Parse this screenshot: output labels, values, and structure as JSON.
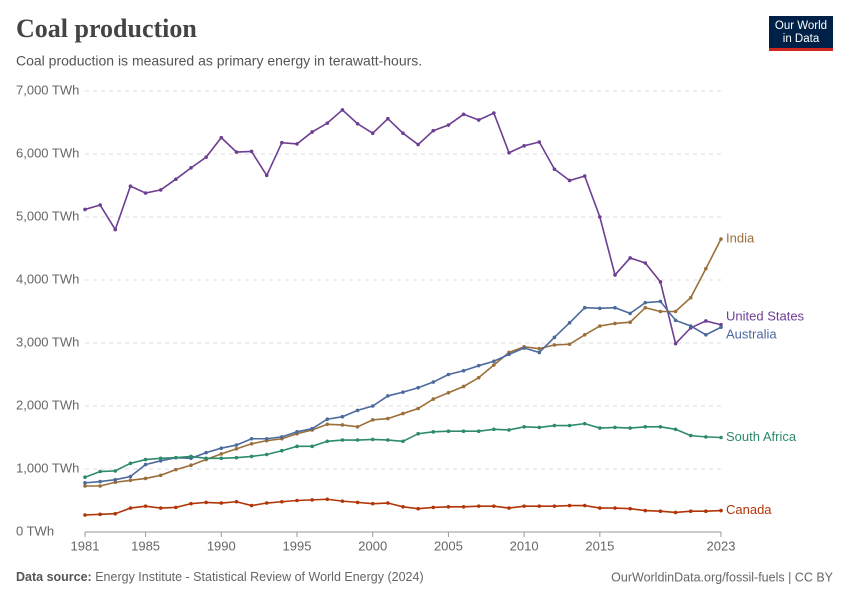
{
  "chart_data": {
    "type": "line",
    "title": "Coal production",
    "subtitle": "Coal production is measured as primary energy in terawatt-hours.",
    "logo": [
      "Our World",
      "in Data"
    ],
    "source_label": "Data source:",
    "source": "Energy Institute - Statistical Review of World Energy (2024)",
    "url": "OurWorldinData.org/fossil-fuels | CC BY",
    "x": [
      1981,
      1982,
      1983,
      1984,
      1985,
      1986,
      1987,
      1988,
      1989,
      1990,
      1991,
      1992,
      1993,
      1994,
      1995,
      1996,
      1997,
      1998,
      1999,
      2000,
      2001,
      2002,
      2003,
      2004,
      2005,
      2006,
      2007,
      2008,
      2009,
      2010,
      2011,
      2012,
      2013,
      2014,
      2015,
      2016,
      2017,
      2018,
      2019,
      2020,
      2021,
      2022,
      2023
    ],
    "xlim": [
      1981,
      2023
    ],
    "xticks": [
      1981,
      1985,
      1990,
      1995,
      2000,
      2005,
      2010,
      2015,
      2023
    ],
    "ylim": [
      0,
      7000
    ],
    "yticks": [
      {
        "value": 0,
        "label": "0 TWh"
      },
      {
        "value": 1000,
        "label": "1,000 TWh"
      },
      {
        "value": 2000,
        "label": "2,000 TWh"
      },
      {
        "value": 3000,
        "label": "3,000 TWh"
      },
      {
        "value": 4000,
        "label": "4,000 TWh"
      },
      {
        "value": 5000,
        "label": "5,000 TWh"
      },
      {
        "value": 6000,
        "label": "6,000 TWh"
      },
      {
        "value": 7000,
        "label": "7,000 TWh"
      }
    ],
    "grid": true,
    "series": [
      {
        "name": "United States",
        "color": "#6d3e91",
        "values": [
          5120,
          5190,
          4800,
          5490,
          5380,
          5430,
          5600,
          5780,
          5950,
          6260,
          6030,
          6040,
          5660,
          6180,
          6160,
          6350,
          6490,
          6700,
          6480,
          6330,
          6560,
          6330,
          6150,
          6370,
          6460,
          6630,
          6540,
          6650,
          6020,
          6130,
          6190,
          5760,
          5580,
          5650,
          5000,
          4080,
          4350,
          4270,
          3970,
          2990,
          3240,
          3350,
          3290
        ]
      },
      {
        "name": "India",
        "color": "#9a6f3a",
        "values": [
          730,
          730,
          790,
          820,
          850,
          900,
          990,
          1060,
          1150,
          1240,
          1320,
          1400,
          1450,
          1480,
          1560,
          1620,
          1710,
          1700,
          1670,
          1780,
          1800,
          1880,
          1960,
          2110,
          2210,
          2310,
          2450,
          2650,
          2850,
          2940,
          2910,
          2970,
          2980,
          3130,
          3270,
          3310,
          3330,
          3560,
          3500,
          3500,
          3720,
          4180,
          4650
        ]
      },
      {
        "name": "Australia",
        "color": "#4c6a9c",
        "values": [
          780,
          800,
          830,
          880,
          1070,
          1130,
          1180,
          1170,
          1260,
          1330,
          1380,
          1480,
          1480,
          1510,
          1590,
          1640,
          1790,
          1830,
          1930,
          2000,
          2160,
          2220,
          2290,
          2380,
          2500,
          2560,
          2640,
          2710,
          2820,
          2920,
          2850,
          3090,
          3320,
          3560,
          3550,
          3560,
          3470,
          3640,
          3660,
          3360,
          3270,
          3130,
          3250
        ]
      },
      {
        "name": "South Africa",
        "color": "#2d8a6b",
        "values": [
          870,
          960,
          970,
          1090,
          1150,
          1170,
          1180,
          1200,
          1170,
          1170,
          1180,
          1200,
          1230,
          1290,
          1360,
          1360,
          1440,
          1460,
          1460,
          1470,
          1460,
          1440,
          1560,
          1590,
          1600,
          1600,
          1600,
          1630,
          1620,
          1670,
          1660,
          1690,
          1690,
          1720,
          1650,
          1660,
          1650,
          1670,
          1670,
          1630,
          1530,
          1510,
          1500
        ]
      },
      {
        "name": "Canada",
        "color": "#b13507",
        "values": [
          270,
          280,
          290,
          380,
          410,
          380,
          390,
          450,
          470,
          460,
          480,
          420,
          460,
          480,
          500,
          510,
          520,
          490,
          470,
          450,
          460,
          400,
          370,
          390,
          400,
          400,
          410,
          410,
          380,
          410,
          410,
          410,
          420,
          420,
          380,
          380,
          370,
          340,
          330,
          310,
          330,
          330,
          340
        ]
      }
    ]
  }
}
